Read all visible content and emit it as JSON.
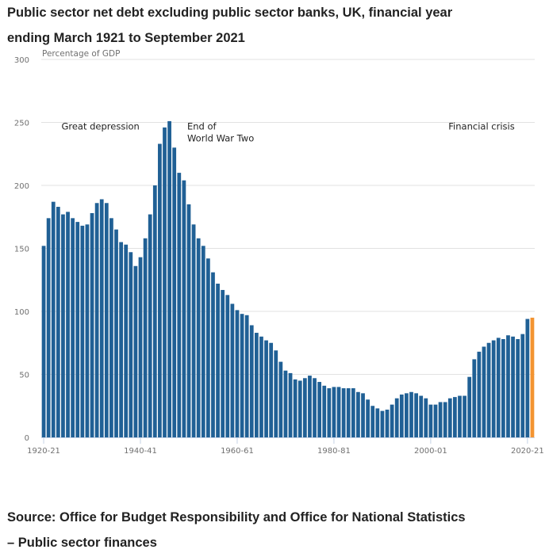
{
  "title_lines": [
    "Public sector net debt excluding public sector banks, UK, financial year",
    "ending March 1921 to September 2021"
  ],
  "source_lines": [
    "Source: Office for Budget Responsibility and Office for National Statistics",
    "– Public sector finances"
  ],
  "chart_data": {
    "type": "bar",
    "title": "Public sector net debt excluding public sector banks, UK, financial year ending March 1921 to September 2021",
    "xlabel": "",
    "ylabel": "Percentage of GDP",
    "ylim": [
      0,
      300
    ],
    "yticks": [
      0,
      50,
      100,
      150,
      200,
      250,
      300
    ],
    "grid": true,
    "legend": "none",
    "colors": {
      "default": "#206095",
      "highlight": "#F39431",
      "grid": "#e2e2e2",
      "axis": "#c6d3e6"
    },
    "xtick_labels": [
      {
        "index": 0,
        "label": "1920-21"
      },
      {
        "index": 20,
        "label": "1940-41"
      },
      {
        "index": 40,
        "label": "1960-61"
      },
      {
        "index": 60,
        "label": "1980-81"
      },
      {
        "index": 80,
        "label": "2000-01"
      },
      {
        "index": 100,
        "label": "2020-21"
      }
    ],
    "first_year": 1920,
    "highlight_index": 101,
    "values": [
      152,
      174,
      187,
      183,
      177,
      179,
      174,
      171,
      168,
      169,
      178,
      186,
      189,
      186,
      174,
      165,
      155,
      153,
      147,
      136,
      143,
      158,
      177,
      200,
      233,
      246,
      251,
      230,
      210,
      204,
      185,
      169,
      158,
      152,
      142,
      131,
      122,
      117,
      113,
      106,
      101,
      98,
      97,
      89,
      83,
      80,
      77,
      75,
      69,
      60,
      53,
      51,
      46,
      45,
      47,
      49,
      47,
      44,
      41,
      39,
      40,
      40,
      39,
      39,
      39,
      36,
      35,
      30,
      25,
      23,
      21,
      22,
      26,
      31,
      34,
      35,
      36,
      35,
      33,
      31,
      26,
      26,
      28,
      28,
      31,
      32,
      33,
      33,
      48,
      62,
      68,
      72,
      75,
      77,
      79,
      78,
      81,
      80,
      78,
      82,
      94,
      95
    ],
    "annotations": [
      {
        "lines": [
          "Great depression"
        ],
        "year_index": 4,
        "y": 245
      },
      {
        "lines": [
          "End of",
          "World War Two"
        ],
        "year_index": 30,
        "y": 245
      },
      {
        "lines": [
          "Financial crisis"
        ],
        "year_index": 84,
        "y": 245
      }
    ]
  }
}
